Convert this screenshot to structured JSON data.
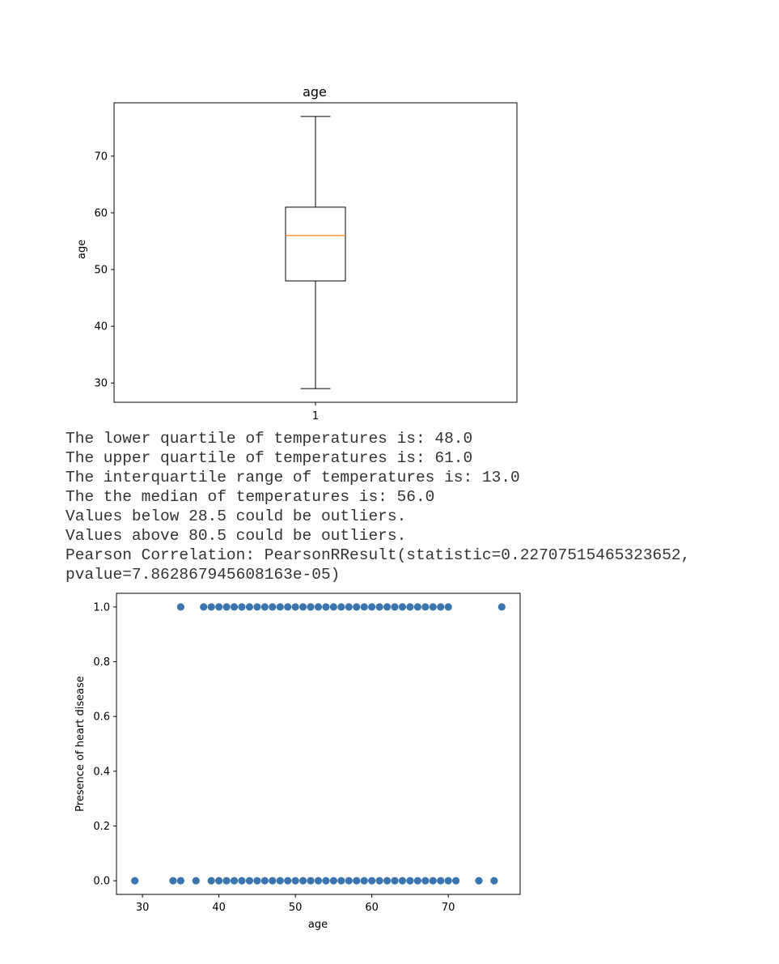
{
  "chart_data": [
    {
      "type": "box",
      "title": "age",
      "ylabel": "age",
      "categories": [
        "1"
      ],
      "yticks": [
        30,
        40,
        50,
        60,
        70
      ],
      "ylim": [
        26.6,
        79.4
      ],
      "box": {
        "whisker_low": 29,
        "q1": 48,
        "median": 56,
        "q3": 61,
        "whisker_high": 77
      },
      "colors": {
        "box": "#000000",
        "median": "#ff7f0e"
      }
    },
    {
      "type": "scatter",
      "xlabel": "age",
      "ylabel": "Presence of heart disease",
      "xticks": [
        30,
        40,
        50,
        60,
        70
      ],
      "yticks": [
        "0.0",
        "0.2",
        "0.4",
        "0.6",
        "0.8",
        "1.0"
      ],
      "xlim": [
        26.6,
        79.4
      ],
      "ylim": [
        -0.05,
        1.05
      ],
      "color": "#3b75af",
      "series": [
        {
          "y": 1.0,
          "x": [
            35,
            38,
            39,
            40,
            41,
            42,
            43,
            44,
            45,
            46,
            47,
            48,
            49,
            50,
            51,
            52,
            53,
            54,
            55,
            56,
            57,
            58,
            59,
            60,
            61,
            62,
            63,
            64,
            65,
            66,
            67,
            68,
            69,
            70,
            77
          ]
        },
        {
          "y": 0.0,
          "x": [
            29,
            34,
            35,
            37,
            39,
            40,
            41,
            42,
            43,
            44,
            45,
            46,
            47,
            48,
            49,
            50,
            51,
            52,
            53,
            54,
            55,
            56,
            57,
            58,
            59,
            60,
            61,
            62,
            63,
            64,
            65,
            66,
            67,
            68,
            69,
            70,
            71,
            74,
            76
          ]
        }
      ]
    }
  ],
  "output_lines": [
    "The lower quartile of temperatures is: 48.0",
    "The upper quartile of temperatures is: 61.0",
    "The interquartile range of temperatures is: 13.0",
    "The the median of temperatures is: 56.0",
    "Values below 28.5 could be outliers.",
    "Values above 80.5 could be outliers.",
    "Pearson Correlation: PearsonRResult(statistic=0.22707515465323652,",
    "pvalue=7.862867945608163e-05)"
  ]
}
